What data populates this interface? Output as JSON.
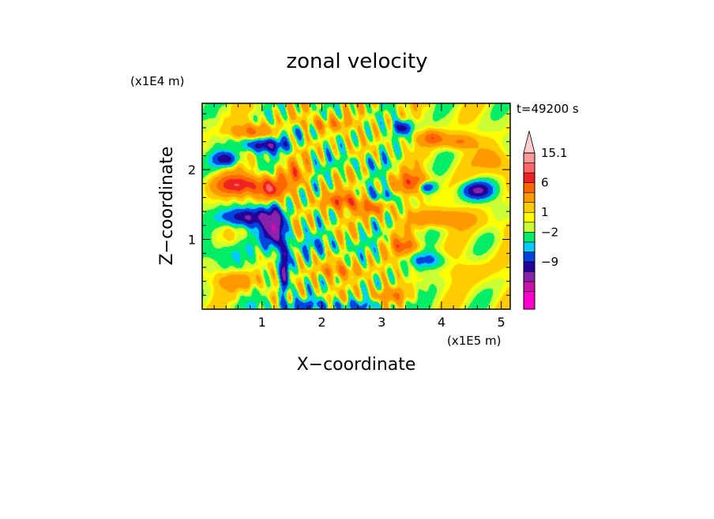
{
  "chart_data": {
    "type": "heatmap",
    "title": "zonal velocity",
    "xlabel": "X−coordinate",
    "ylabel": "Z−coordinate",
    "x_scale_label": "(x1E5 m)",
    "y_scale_label": "(x1E4 m)",
    "time_label": "t=49200 s",
    "xlim": [
      0,
      5.15
    ],
    "ylim": [
      0,
      2.95
    ],
    "x_ticks": [
      {
        "value": 1,
        "label": "1"
      },
      {
        "value": 2,
        "label": "2"
      },
      {
        "value": 3,
        "label": "3"
      },
      {
        "value": 4,
        "label": "4"
      },
      {
        "value": 5,
        "label": "5"
      }
    ],
    "y_ticks": [
      {
        "value": 1,
        "label": "1"
      },
      {
        "value": 2,
        "label": "2"
      }
    ],
    "colorbar": {
      "colors": [
        "#ff00cc",
        "#cc11aa",
        "#8822aa",
        "#220099",
        "#0044dd",
        "#00ccff",
        "#00ee66",
        "#ccff33",
        "#ffff00",
        "#ffcc00",
        "#ff9900",
        "#ff6600",
        "#ee2222",
        "#ff6666",
        "#ff9999",
        "#ffcccc"
      ],
      "labels": [
        {
          "index": 3,
          "text": "−9"
        },
        {
          "index": 6,
          "text": "−2"
        },
        {
          "index": 8,
          "text": "1"
        },
        {
          "index": 11,
          "text": "6"
        },
        {
          "index": 15,
          "text": "15.1"
        }
      ]
    },
    "field_features": [
      {
        "x": 0.62,
        "z": 1.78,
        "sx": 0.42,
        "sz": 0.14,
        "v": 7
      },
      {
        "x": 1.15,
        "z": 1.72,
        "sx": 0.22,
        "sz": 0.15,
        "v": 6
      },
      {
        "x": 0.75,
        "z": 1.32,
        "sx": 0.4,
        "sz": 0.13,
        "v": -7
      },
      {
        "x": 1.2,
        "z": 1.15,
        "sx": 0.18,
        "sz": 0.28,
        "v": -9
      },
      {
        "x": 1.38,
        "z": 0.6,
        "sx": 0.07,
        "sz": 0.45,
        "v": -8
      },
      {
        "x": 0.4,
        "z": 2.15,
        "sx": 0.2,
        "sz": 0.1,
        "v": -6
      },
      {
        "x": 1.05,
        "z": 2.35,
        "sx": 0.38,
        "sz": 0.1,
        "v": -6
      },
      {
        "x": 0.85,
        "z": 2.55,
        "sx": 0.35,
        "sz": 0.1,
        "v": 4
      },
      {
        "x": 1.55,
        "z": 1.92,
        "sx": 0.22,
        "sz": 0.18,
        "v": 3
      },
      {
        "x": 2.35,
        "z": 1.55,
        "sx": 0.35,
        "sz": 0.12,
        "v": 5
      },
      {
        "x": 2.85,
        "z": 1.45,
        "sx": 0.25,
        "sz": 0.12,
        "v": 4
      },
      {
        "x": 3.0,
        "z": 1.62,
        "sx": 0.3,
        "sz": 0.1,
        "v": -3
      },
      {
        "x": 2.6,
        "z": 2.1,
        "sx": 0.35,
        "sz": 0.1,
        "v": -2
      },
      {
        "x": 3.55,
        "z": 1.8,
        "sx": 0.3,
        "sz": 0.15,
        "v": 5
      },
      {
        "x": 4.0,
        "z": 1.3,
        "sx": 0.45,
        "sz": 0.12,
        "v": 4
      },
      {
        "x": 3.35,
        "z": 2.6,
        "sx": 0.15,
        "sz": 0.1,
        "v": -6
      },
      {
        "x": 3.85,
        "z": 2.45,
        "sx": 0.2,
        "sz": 0.1,
        "v": 5
      },
      {
        "x": 4.3,
        "z": 2.4,
        "sx": 0.25,
        "sz": 0.1,
        "v": 4
      },
      {
        "x": 4.9,
        "z": 2.1,
        "sx": 0.25,
        "sz": 0.2,
        "v": 3
      },
      {
        "x": 4.6,
        "z": 1.7,
        "sx": 0.25,
        "sz": 0.12,
        "v": -7
      },
      {
        "x": 3.75,
        "z": 1.75,
        "sx": 0.15,
        "sz": 0.08,
        "v": -6
      },
      {
        "x": 4.9,
        "z": 1.2,
        "sx": 0.3,
        "sz": 0.15,
        "v": 1
      },
      {
        "x": 3.4,
        "z": 0.9,
        "sx": 0.25,
        "sz": 0.12,
        "v": 4
      },
      {
        "x": 3.8,
        "z": 0.7,
        "sx": 0.3,
        "sz": 0.12,
        "v": -3
      },
      {
        "x": 4.5,
        "z": 0.55,
        "sx": 0.4,
        "sz": 0.2,
        "v": 1
      },
      {
        "x": 0.35,
        "z": 0.8,
        "sx": 0.35,
        "sz": 0.2,
        "v": -2
      },
      {
        "x": 0.6,
        "z": 0.4,
        "sx": 0.35,
        "sz": 0.12,
        "v": 3
      },
      {
        "x": 2.1,
        "z": 0.9,
        "sx": 0.45,
        "sz": 0.12,
        "v": -2
      },
      {
        "x": 2.3,
        "z": 0.55,
        "sx": 0.4,
        "sz": 0.1,
        "v": 3
      },
      {
        "x": 2.0,
        "z": 0.05,
        "sx": 1.0,
        "sz": 0.08,
        "v": -3
      },
      {
        "x": 3.1,
        "z": 0.2,
        "sx": 0.3,
        "sz": 0.1,
        "v": 3
      },
      {
        "x": 2.05,
        "z": 2.65,
        "sx": 0.4,
        "sz": 0.1,
        "v": 3
      },
      {
        "x": 1.6,
        "z": 2.55,
        "sx": 0.25,
        "sz": 0.1,
        "v": -2
      }
    ]
  }
}
